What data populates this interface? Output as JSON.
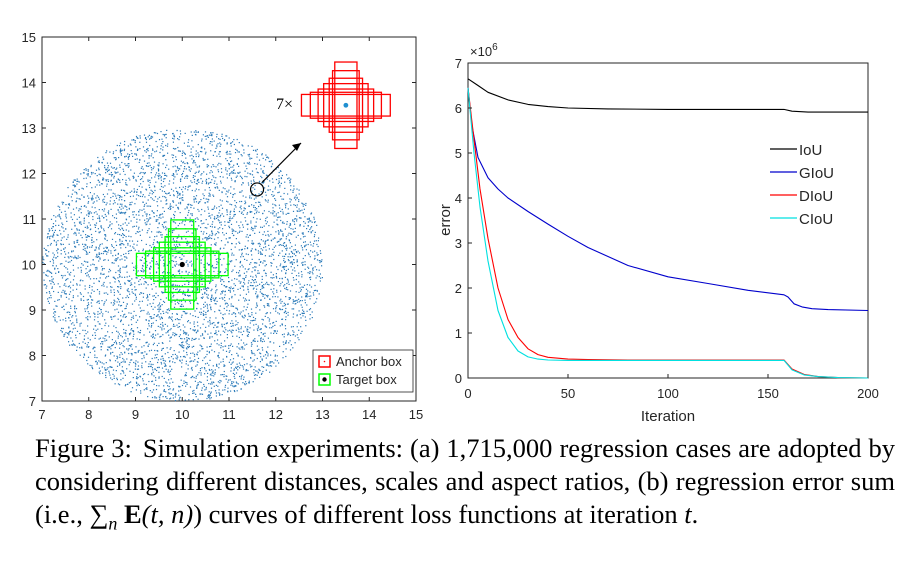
{
  "figure": {
    "panel_a": {
      "chart_data": {
        "type": "scatter",
        "xlim": [
          7,
          15
        ],
        "ylim": [
          7,
          15
        ],
        "xticks": [
          7,
          8,
          9,
          10,
          11,
          12,
          13,
          14,
          15
        ],
        "yticks": [
          7,
          8,
          9,
          10,
          11,
          12,
          13,
          14,
          15
        ],
        "points_description": "uniform random points inside disc",
        "disc_center": [
          10,
          10
        ],
        "disc_radius": 3,
        "point_count_drawn": 5000,
        "target_center": [
          10,
          10
        ],
        "anchor_center": [
          13.5,
          13.5
        ],
        "highlight_point": [
          11.6,
          11.65
        ],
        "annotation": "7×",
        "legend": [
          {
            "label": "Anchor box",
            "color": "#ff0000"
          },
          {
            "label": "Target box",
            "color": "#00ff00"
          }
        ],
        "colors": {
          "points": "#2b7bb9",
          "anchor": "#ff0000",
          "target": "#00ff00",
          "anchor_dot": "#1f8fd0"
        }
      }
    },
    "panel_b": {
      "chart_data": {
        "type": "line",
        "xlabel": "Iteration",
        "ylabel": "error",
        "exponent_label": "×10",
        "exponent_power": "6",
        "xlim": [
          0,
          200
        ],
        "ylim": [
          0,
          7
        ],
        "xticks": [
          0,
          50,
          100,
          150,
          200
        ],
        "yticks": [
          0,
          1,
          2,
          3,
          4,
          5,
          6,
          7
        ],
        "series": [
          {
            "name": "IoU",
            "color": "#000000",
            "x": [
              0,
              5,
              10,
              20,
              30,
              40,
              50,
              70,
              100,
              130,
              158,
              162,
              170,
              180,
              200
            ],
            "y": [
              6.65,
              6.5,
              6.35,
              6.18,
              6.08,
              6.03,
              6.0,
              5.98,
              5.97,
              5.97,
              5.97,
              5.93,
              5.91,
              5.91,
              5.91
            ]
          },
          {
            "name": "GIoU",
            "color": "#0000cc",
            "x": [
              0,
              2,
              5,
              10,
              15,
              20,
              30,
              40,
              50,
              60,
              70,
              80,
              100,
              120,
              140,
              158,
              160,
              163,
              167,
              172,
              180,
              200
            ],
            "y": [
              6.45,
              5.6,
              4.9,
              4.45,
              4.2,
              4.0,
              3.7,
              3.42,
              3.15,
              2.9,
              2.7,
              2.5,
              2.25,
              2.1,
              1.95,
              1.85,
              1.8,
              1.65,
              1.58,
              1.54,
              1.52,
              1.5
            ]
          },
          {
            "name": "DIoU",
            "color": "#ff0000",
            "x": [
              0,
              3,
              6,
              10,
              15,
              20,
              25,
              30,
              35,
              40,
              50,
              60,
              80,
              100,
              130,
              158,
              162,
              168,
              175,
              185,
              200
            ],
            "y": [
              6.45,
              5.3,
              4.2,
              3.1,
              2.0,
              1.3,
              0.9,
              0.65,
              0.52,
              0.46,
              0.42,
              0.41,
              0.4,
              0.4,
              0.4,
              0.4,
              0.2,
              0.08,
              0.03,
              0.01,
              0.0
            ]
          },
          {
            "name": "CIoU",
            "color": "#00e0e0",
            "x": [
              0,
              3,
              6,
              10,
              15,
              20,
              25,
              30,
              35,
              40,
              50,
              60,
              80,
              100,
              130,
              158,
              162,
              168,
              175,
              185,
              200
            ],
            "y": [
              6.45,
              5.0,
              3.8,
              2.6,
              1.5,
              0.9,
              0.6,
              0.47,
              0.42,
              0.4,
              0.39,
              0.39,
              0.39,
              0.39,
              0.39,
              0.39,
              0.18,
              0.07,
              0.03,
              0.01,
              0.0
            ]
          }
        ]
      }
    }
  },
  "caption": {
    "label": "Figure 3:",
    "text_1": "Simulation experiments: (a) 1,715,000 regression cases are adopted by considering different distances, scales and aspect ratios, (b) regression error sum (i.e., ",
    "sum_symbol": "∑",
    "sum_sub": "n",
    "bold_E": "E",
    "args": "(t, n)",
    "text_2": ") curves of different loss functions at iteration ",
    "t": "t",
    "end": "."
  }
}
